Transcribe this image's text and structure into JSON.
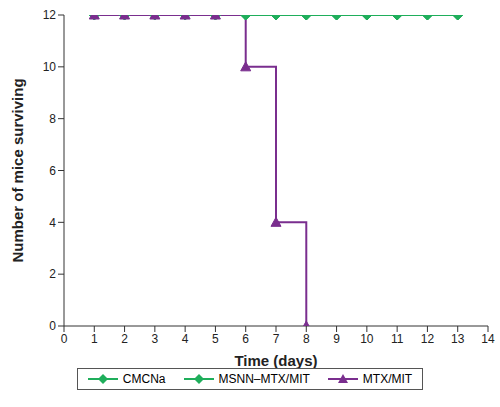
{
  "chart_data": {
    "type": "line",
    "xlabel": "Time (days)",
    "ylabel": "Number of mice surviving",
    "x": [
      1,
      2,
      3,
      4,
      5,
      6,
      7,
      8,
      9,
      10,
      11,
      12,
      13
    ],
    "series": [
      {
        "name": "CMCNa",
        "color": "#1fae5b",
        "marker": "diamond",
        "values": [
          12,
          12,
          12,
          12,
          12,
          12,
          12,
          12,
          12,
          12,
          12,
          12,
          12
        ]
      },
      {
        "name": "MSNN–MTX/MIT",
        "color": "#1fae5b",
        "marker": "diamond",
        "values": [
          12,
          12,
          12,
          12,
          12,
          12,
          12,
          12,
          12,
          12,
          12,
          12,
          12
        ]
      },
      {
        "name": "MTX/MIT",
        "color": "#7a2e8e",
        "marker": "triangle",
        "values": [
          12,
          12,
          12,
          12,
          12,
          10,
          4,
          0,
          null,
          null,
          null,
          null,
          null
        ]
      }
    ],
    "line_style": "step",
    "xlim": [
      0,
      14
    ],
    "xticks": [
      0,
      1,
      2,
      3,
      4,
      5,
      6,
      7,
      8,
      9,
      10,
      11,
      12,
      13,
      14
    ],
    "ylim": [
      0,
      12
    ],
    "yticks": [
      0,
      2,
      4,
      6,
      8,
      10,
      12
    ],
    "legend": "bottom"
  }
}
